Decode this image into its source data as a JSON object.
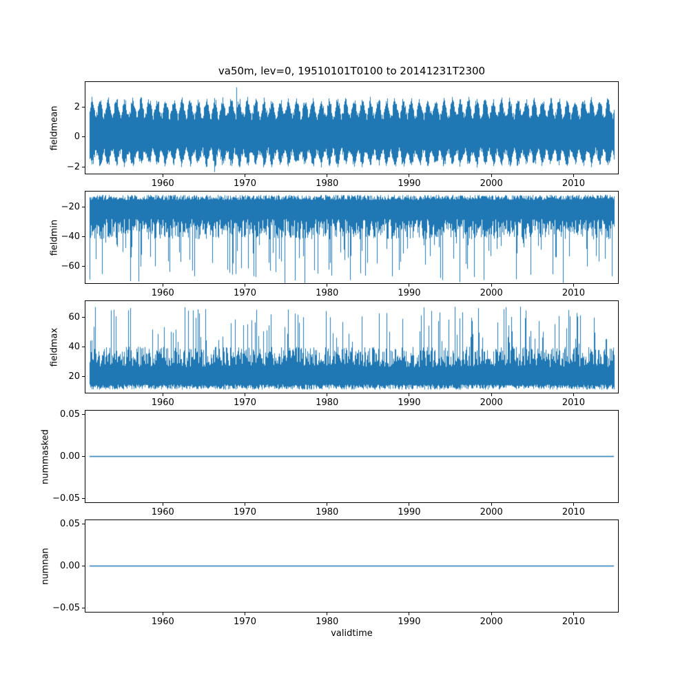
{
  "figure": {
    "background": "#ffffff",
    "grid": false,
    "legend": null
  },
  "chart_data": {
    "type": "line",
    "title": "va50m, lev=0, 19510101T0100 to 20141231T2300",
    "xlabel": "validtime",
    "line_color": "#1f77b4",
    "x_range": [
      1950.5,
      2015.5
    ],
    "data_start": 1951,
    "data_end": 2015,
    "x_ticks": [
      1960,
      1970,
      1980,
      1990,
      2000,
      2010
    ],
    "x_tick_labels": [
      "1960",
      "1970",
      "1980",
      "1990",
      "2000",
      "2010"
    ],
    "subplots": [
      {
        "name": "fieldmean",
        "ylabel": "fieldmean",
        "ylim": [
          -2.5,
          3.7
        ],
        "ytick_values": [
          2,
          0,
          -2
        ],
        "ytick_labels": [
          "2",
          "0",
          "−2"
        ],
        "description": "Dense noisy hourly series oscillating roughly between -2 and 3 with a visible annual cycle; extremes near -2.4 and 3.4.",
        "signal": {
          "kind": "seasonal-noise",
          "upper_base": 1.1,
          "upper_seasonal": 1.1,
          "lower_base": -0.7,
          "lower_seasonal": 0.9,
          "noise": 0.5,
          "extreme_high": 3.45,
          "extreme_low": -2.45,
          "extreme_prob": 0.004
        }
      },
      {
        "name": "fieldmin",
        "ylabel": "fieldmin",
        "ylim": [
          -72,
          -9.2
        ],
        "ytick_values": [
          -20,
          -40,
          -60
        ],
        "ytick_labels": [
          "−20",
          "−40",
          "−60"
        ],
        "description": "Dense band between about -12 and -40 with frequent downward spikes reaching about -70.",
        "signal": {
          "kind": "band-spikes-down",
          "band_top": -11.5,
          "band_top_jitter": 3.5,
          "band_bottom": -28,
          "band_bottom_jitter": 14,
          "spike_prob": 0.13,
          "spike_min": -44,
          "spike_max": -72
        }
      },
      {
        "name": "fieldmax",
        "ylabel": "fieldmax",
        "ylim": [
          8.4,
          71.2
        ],
        "ytick_values": [
          60,
          40,
          20
        ],
        "ytick_labels": [
          "60",
          "40",
          "20"
        ],
        "description": "Dense band between about 11 and 40 with frequent upward spikes reaching about 67.",
        "signal": {
          "kind": "band-spikes-up",
          "band_bottom": 10.5,
          "band_bottom_jitter": 3.5,
          "band_top": 26,
          "band_top_jitter": 14,
          "spike_prob": 0.13,
          "spike_min": 42,
          "spike_max": 68
        }
      },
      {
        "name": "nummasked",
        "ylabel": "nummasked",
        "ylim": [
          -0.055,
          0.055
        ],
        "ytick_values": [
          0.05,
          0,
          -0.05
        ],
        "ytick_labels": [
          "0.05",
          "0.00",
          "−0.05"
        ],
        "description": "Constant zero line for the whole period.",
        "signal": {
          "kind": "constant",
          "value": 0
        }
      },
      {
        "name": "numnan",
        "ylabel": "numnan",
        "ylim": [
          -0.055,
          0.055
        ],
        "ytick_values": [
          0.05,
          0,
          -0.05
        ],
        "ytick_labels": [
          "0.05",
          "0.00",
          "−0.05"
        ],
        "description": "Constant zero line for the whole period.",
        "signal": {
          "kind": "constant",
          "value": 0
        }
      }
    ]
  }
}
